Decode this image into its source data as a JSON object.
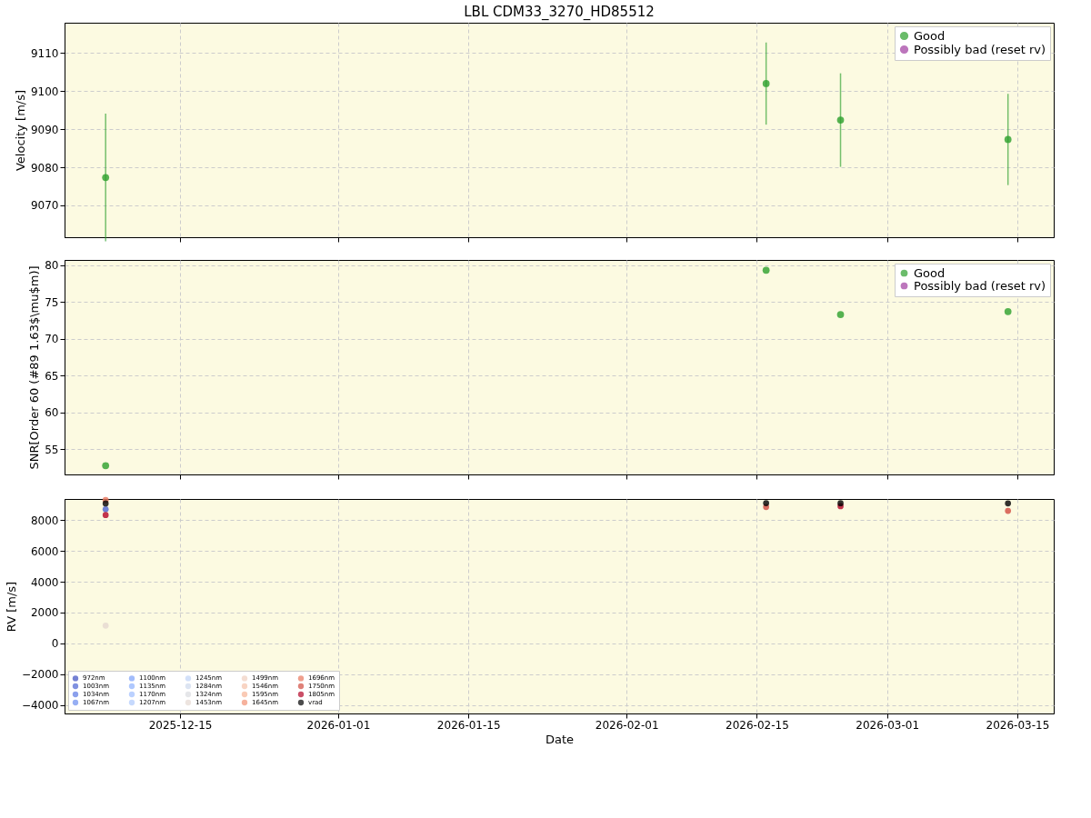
{
  "chart_data": [
    {
      "type": "scatter",
      "title": "LBL CDM33_3270_HD85512",
      "ylabel": "Velocity [m/s]",
      "x": [
        "2025-12-07",
        "2026-02-16",
        "2026-02-24",
        "2026-03-14"
      ],
      "series": [
        {
          "name": "Good",
          "color": "#2ca02c",
          "values": [
            9077.3,
            9102,
            9092.4,
            9087.3
          ],
          "errors": [
            16.8,
            10.8,
            12.3,
            12
          ]
        },
        {
          "name": "Possibly bad (reset rv)",
          "color": "#a03ca0",
          "values": [
            null,
            null,
            null,
            null
          ]
        }
      ],
      "xlim": [
        "2025-12-02T14:00",
        "2026-03-18T22:00"
      ],
      "xticks": [
        "2025-12-15",
        "2026-01-01",
        "2026-01-15",
        "2026-02-01",
        "2026-02-15",
        "2026-03-01",
        "2026-03-15"
      ],
      "ylim": [
        9061.6,
        9118
      ],
      "yticks": [
        9070,
        9080,
        9090,
        9100,
        9110
      ],
      "grid": true,
      "legend": "top right",
      "marker": "circle",
      "tick_labels": "y"
    },
    {
      "type": "scatter",
      "ylabel": "SNR[Order 60 (#89 1.63$\\mu$m)]",
      "x": [
        "2025-12-07",
        "2026-02-16",
        "2026-02-24",
        "2026-03-14"
      ],
      "series": [
        {
          "name": "Good",
          "color": "#2ca02c",
          "values": [
            52.8,
            79.3,
            73.3,
            73.7
          ]
        },
        {
          "name": "Possibly bad (reset rv)",
          "color": "#a03ca0",
          "values": [
            null,
            null,
            null,
            null
          ]
        }
      ],
      "xlim": [
        "2025-12-02T14:00",
        "2026-03-18T22:00"
      ],
      "xticks": [
        "2025-12-15",
        "2026-01-01",
        "2026-01-15",
        "2026-02-01",
        "2026-02-15",
        "2026-03-01",
        "2026-03-15"
      ],
      "ylim": [
        51.6,
        80.7
      ],
      "yticks": [
        55,
        60,
        65,
        70,
        75,
        80
      ],
      "grid": true,
      "legend": "top right",
      "marker": "circle",
      "tick_labels": "y"
    },
    {
      "type": "scatter",
      "xlabel": "Date",
      "ylabel": "RV [m/s]",
      "x": [
        "2025-12-07",
        "2026-02-16",
        "2026-02-24",
        "2026-03-14"
      ],
      "series": [
        {
          "name": "972nm",
          "color": "#3b4cc0",
          "values": [
            null,
            null,
            null,
            null
          ]
        },
        {
          "name": "1003nm",
          "color": "#4a63d3",
          "values": [
            8700,
            null,
            null,
            null
          ]
        },
        {
          "name": "1034nm",
          "color": "#5a78e4",
          "values": [
            null,
            null,
            null,
            null
          ]
        },
        {
          "name": "1067nm",
          "color": "#6b8df0",
          "values": [
            null,
            null,
            null,
            null
          ]
        },
        {
          "name": "1100nm",
          "color": "#7b9ff9",
          "values": [
            null,
            null,
            null,
            null
          ]
        },
        {
          "name": "1135nm",
          "color": "#8db0fe",
          "values": [
            null,
            null,
            null,
            null
          ]
        },
        {
          "name": "1170nm",
          "color": "#9ebeff",
          "values": [
            null,
            null,
            null,
            null
          ]
        },
        {
          "name": "1207nm",
          "color": "#aec9fc",
          "values": [
            null,
            null,
            null,
            null
          ]
        },
        {
          "name": "1245nm",
          "color": "#bfd3f6",
          "values": [
            null,
            null,
            null,
            null
          ]
        },
        {
          "name": "1284nm",
          "color": "#cdd9ec",
          "values": [
            null,
            null,
            null,
            null
          ]
        },
        {
          "name": "1324nm",
          "color": "#dadce0",
          "values": [
            null,
            null,
            null,
            null
          ]
        },
        {
          "name": "1453nm",
          "color": "#e5d8d1",
          "values": [
            1150,
            null,
            null,
            null
          ]
        },
        {
          "name": "1499nm",
          "color": "#efcfbf",
          "values": [
            null,
            null,
            null,
            null
          ]
        },
        {
          "name": "1546nm",
          "color": "#f5c2aa",
          "values": [
            null,
            null,
            null,
            null
          ]
        },
        {
          "name": "1595nm",
          "color": "#f7b396",
          "values": [
            null,
            null,
            null,
            null
          ]
        },
        {
          "name": "1645nm",
          "color": "#f29274",
          "values": [
            null,
            null,
            null,
            null
          ]
        },
        {
          "name": "1696nm",
          "color": "#e8765c",
          "values": [
            9300,
            null,
            null,
            null
          ]
        },
        {
          "name": "1750nm",
          "color": "#d24b40",
          "values": [
            null,
            8850,
            null,
            8600
          ]
        },
        {
          "name": "1805nm",
          "color": "#b40426",
          "values": [
            8330,
            null,
            8900,
            null
          ]
        },
        {
          "name": "vrad",
          "color": "#000000",
          "values": [
            9077,
            9102,
            9092,
            9087
          ]
        }
      ],
      "xlim": [
        "2025-12-02T14:00",
        "2026-03-18T22:00"
      ],
      "xticks": [
        "2025-12-15",
        "2026-01-01",
        "2026-01-15",
        "2026-02-01",
        "2026-02-15",
        "2026-03-01",
        "2026-03-15"
      ],
      "ylim": [
        -4550,
        9370
      ],
      "yticks": [
        -4000,
        -2000,
        0,
        2000,
        4000,
        6000,
        8000
      ],
      "grid": true,
      "legend": "bottom left",
      "marker": "circle"
    }
  ]
}
